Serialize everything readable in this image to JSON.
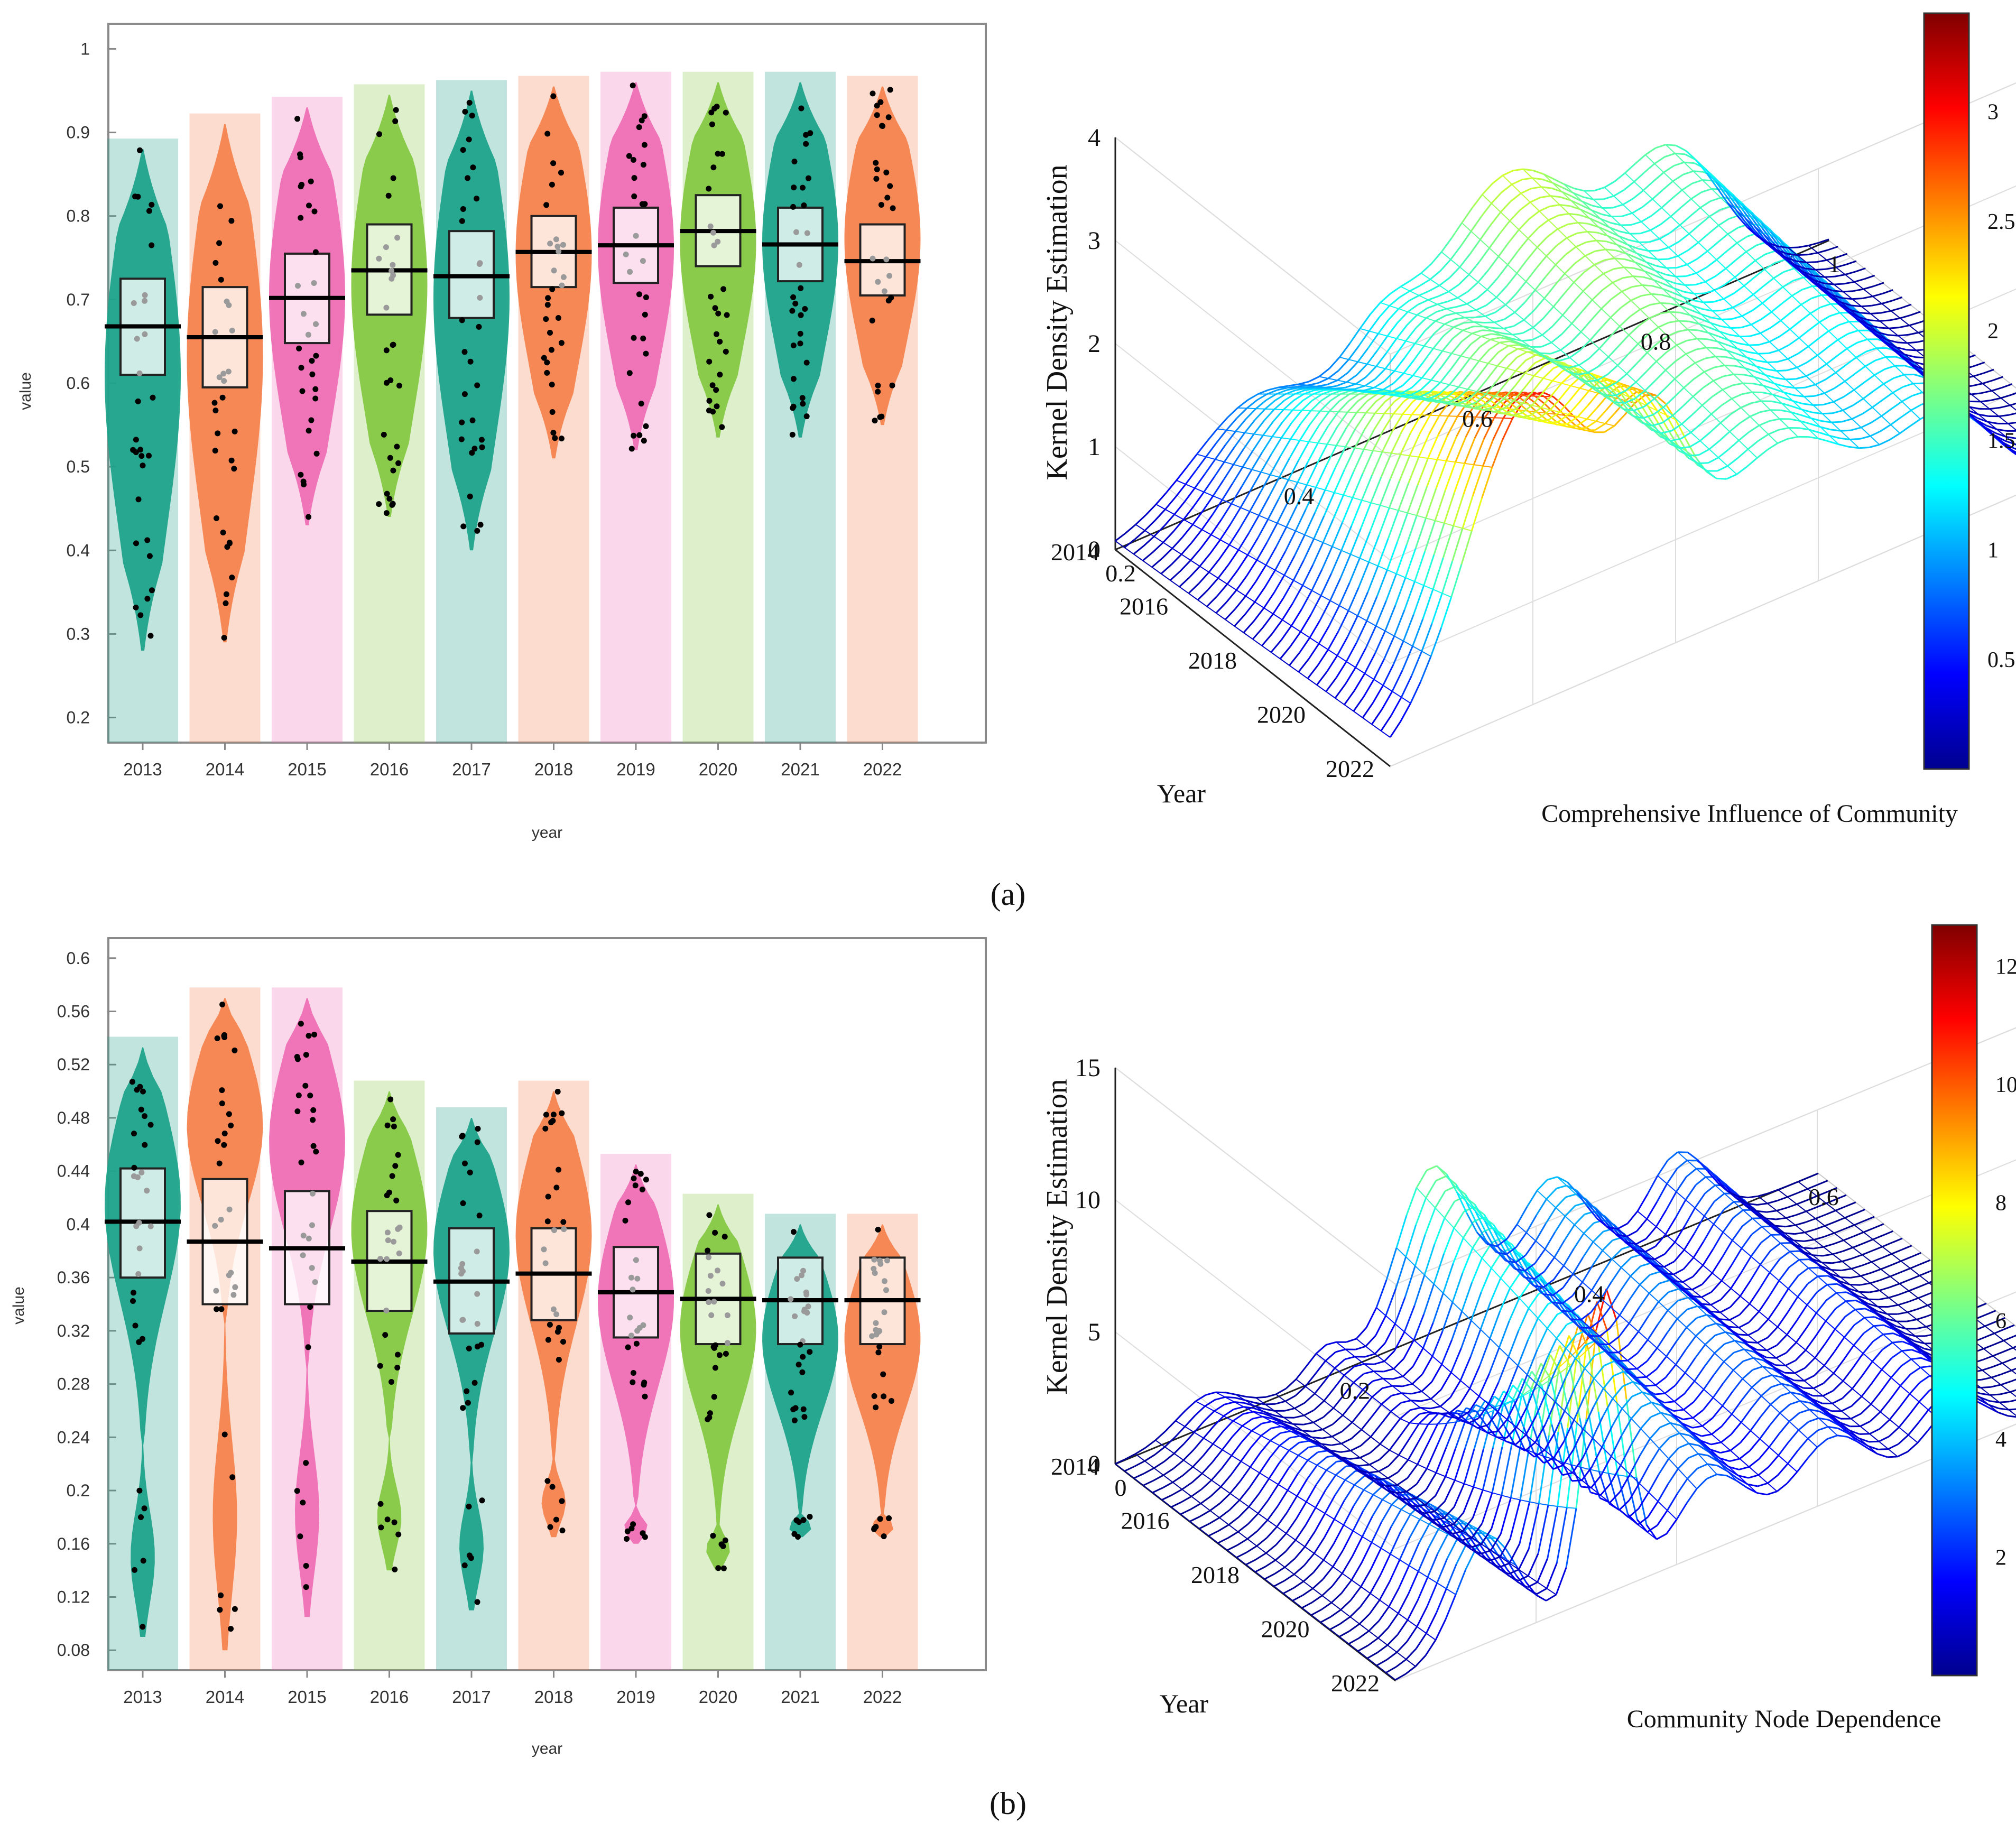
{
  "panels": [
    {
      "label": "(a)",
      "violin": {
        "type": "violin",
        "xlabel": "year",
        "ylabel": "value",
        "categories": [
          "2013",
          "2014",
          "2015",
          "2016",
          "2017",
          "2018",
          "2019",
          "2020",
          "2021",
          "2022"
        ],
        "colors": [
          "#1fa38a",
          "#f5834f",
          "#ee6fb5",
          "#86c843",
          "#1fa38a",
          "#f5834f",
          "#ee6fb5",
          "#86c843",
          "#1fa38a",
          "#f5834f"
        ],
        "ylim": [
          0.17,
          1.03
        ],
        "yticks": [
          0.2,
          0.3,
          0.4,
          0.5,
          0.6,
          0.7,
          0.8,
          0.9,
          1.0
        ],
        "ytick_labels": [
          "0.2",
          "0.3",
          "0.4",
          "0.5",
          "0.6",
          "0.7",
          "0.8",
          "0.9",
          "1"
        ],
        "series": [
          {
            "min": 0.28,
            "max": 0.88,
            "q1": 0.61,
            "q3": 0.725,
            "median": 0.668
          },
          {
            "min": 0.29,
            "max": 0.91,
            "q1": 0.595,
            "q3": 0.715,
            "median": 0.655
          },
          {
            "min": 0.43,
            "max": 0.93,
            "q1": 0.648,
            "q3": 0.755,
            "median": 0.702
          },
          {
            "min": 0.44,
            "max": 0.945,
            "q1": 0.682,
            "q3": 0.79,
            "median": 0.735
          },
          {
            "min": 0.4,
            "max": 0.95,
            "q1": 0.678,
            "q3": 0.782,
            "median": 0.728
          },
          {
            "min": 0.51,
            "max": 0.955,
            "q1": 0.715,
            "q3": 0.8,
            "median": 0.757
          },
          {
            "min": 0.52,
            "max": 0.96,
            "q1": 0.72,
            "q3": 0.81,
            "median": 0.765
          },
          {
            "min": 0.535,
            "max": 0.96,
            "q1": 0.74,
            "q3": 0.825,
            "median": 0.782
          },
          {
            "min": 0.535,
            "max": 0.96,
            "q1": 0.722,
            "q3": 0.81,
            "median": 0.766
          },
          {
            "min": 0.55,
            "max": 0.955,
            "q1": 0.705,
            "q3": 0.79,
            "median": 0.746
          }
        ]
      },
      "surface": {
        "type": "surface3d",
        "zlabel": "Kernel Density Estimation",
        "ylabel": "Year",
        "xlabel": "Comprehensive Influence of Community",
        "zticks": [
          "0",
          "1",
          "2",
          "3",
          "4"
        ],
        "yticks": [
          "2022",
          "2020",
          "2018",
          "2016",
          "2014"
        ],
        "xticks": [
          "0.2",
          "0.4",
          "0.6",
          "0.8",
          "1"
        ],
        "colorbar_ticks": [
          "0.5",
          "1",
          "1.5",
          "2",
          "2.5",
          "3"
        ],
        "colorbar_range": [
          0,
          3.45
        ],
        "zlim": [
          0,
          4
        ],
        "peak_density": 3.4
      }
    },
    {
      "label": "(b)",
      "violin": {
        "type": "violin",
        "xlabel": "year",
        "ylabel": "value",
        "categories": [
          "2013",
          "2014",
          "2015",
          "2016",
          "2017",
          "2018",
          "2019",
          "2020",
          "2021",
          "2022"
        ],
        "colors": [
          "#1fa38a",
          "#f5834f",
          "#ee6fb5",
          "#86c843",
          "#1fa38a",
          "#f5834f",
          "#ee6fb5",
          "#86c843",
          "#1fa38a",
          "#f5834f"
        ],
        "ylim": [
          0.065,
          0.615
        ],
        "yticks": [
          0.08,
          0.12,
          0.16,
          0.2,
          0.24,
          0.28,
          0.32,
          0.36,
          0.4,
          0.44,
          0.48,
          0.52,
          0.56,
          0.6
        ],
        "ytick_labels": [
          "0.08",
          "0.12",
          "0.16",
          "0.2",
          "0.24",
          "0.28",
          "0.32",
          "0.36",
          "0.4",
          "0.44",
          "0.48",
          "0.52",
          "0.56",
          "0.6"
        ],
        "series": [
          {
            "min": 0.09,
            "max": 0.533,
            "q1": 0.36,
            "q3": 0.442,
            "median": 0.402,
            "low_min": 0.09,
            "low_max": 0.24
          },
          {
            "min": 0.08,
            "max": 0.57,
            "q1": 0.34,
            "q3": 0.434,
            "median": 0.387,
            "low_min": 0.08,
            "low_max": 0.33
          },
          {
            "min": 0.105,
            "max": 0.57,
            "q1": 0.34,
            "q3": 0.425,
            "median": 0.382,
            "low_min": 0.105,
            "low_max": 0.3
          },
          {
            "min": 0.14,
            "max": 0.5,
            "q1": 0.335,
            "q3": 0.41,
            "median": 0.372,
            "low_min": 0.14,
            "low_max": 0.24
          },
          {
            "min": 0.11,
            "max": 0.48,
            "q1": 0.318,
            "q3": 0.397,
            "median": 0.357,
            "low_min": 0.11,
            "low_max": 0.23
          },
          {
            "min": 0.165,
            "max": 0.5,
            "q1": 0.328,
            "q3": 0.397,
            "median": 0.363,
            "low_min": 0.165,
            "low_max": 0.23
          },
          {
            "min": 0.16,
            "max": 0.445,
            "q1": 0.315,
            "q3": 0.383,
            "median": 0.349,
            "low_min": 0.16,
            "low_max": 0.19
          },
          {
            "min": 0.14,
            "max": 0.415,
            "q1": 0.31,
            "q3": 0.378,
            "median": 0.344,
            "low_min": 0.14,
            "low_max": 0.18
          },
          {
            "min": 0.165,
            "max": 0.4,
            "q1": 0.31,
            "q3": 0.375,
            "median": 0.343,
            "low_min": 0.165,
            "low_max": 0.185
          },
          {
            "min": 0.165,
            "max": 0.4,
            "q1": 0.31,
            "q3": 0.375,
            "median": 0.343,
            "low_min": 0.165,
            "low_max": 0.185
          }
        ]
      },
      "surface": {
        "type": "surface3d",
        "zlabel": "Kernel Density Estimation",
        "ylabel": "Year",
        "xlabel": "Community Node Dependence",
        "zticks": [
          "0",
          "5",
          "10",
          "15"
        ],
        "yticks": [
          "2022",
          "2020",
          "2018",
          "2016",
          "2014"
        ],
        "xticks": [
          "0",
          "0.2",
          "0.4",
          "0.6"
        ],
        "colorbar_ticks": [
          "2",
          "4",
          "6",
          "8",
          "10",
          "12"
        ],
        "colorbar_range": [
          0,
          12.7
        ],
        "zlim": [
          0,
          15
        ],
        "peak_density": 12.5
      }
    }
  ]
}
